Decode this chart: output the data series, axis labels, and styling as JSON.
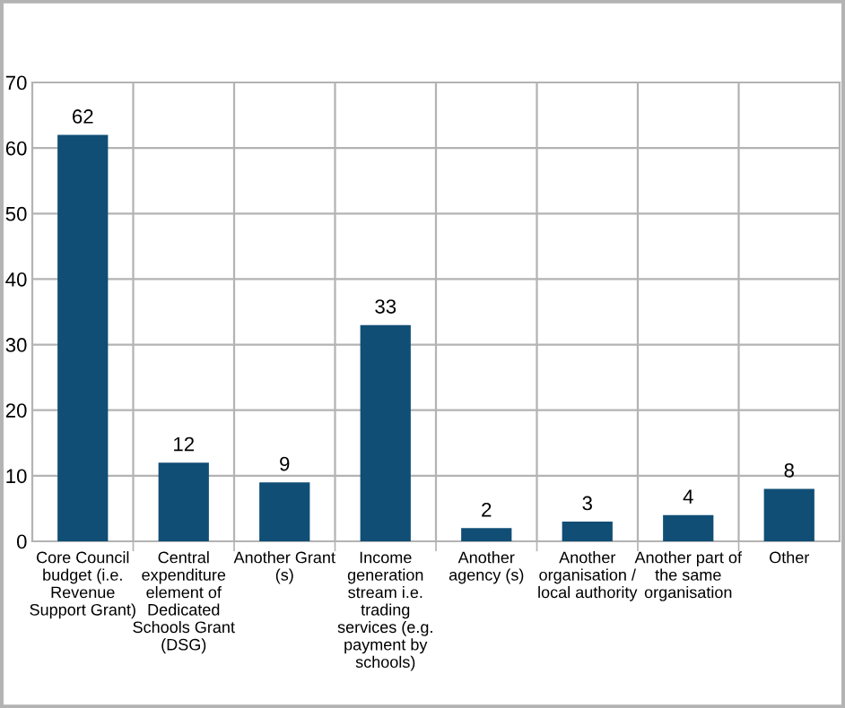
{
  "chart_data": {
    "type": "bar",
    "categories": [
      "Core Council\nbudget (i.e.\nRevenue\nSupport Grant)",
      "Central\nexpenditure\nelement of\nDedicated\nSchools Grant\n(DSG)",
      "Another Grant\n(s)",
      "Income\ngeneration\nstream i.e.\ntrading\nservices (e.g.\npayment by\nschools)",
      "Another\nagency (s)",
      "Another\norganisation /\nlocal authority",
      "Another part of\nthe same\norganisation",
      "Other"
    ],
    "values": [
      62,
      12,
      9,
      33,
      2,
      3,
      4,
      8
    ],
    "color": "#104e75",
    "ylim": [
      0,
      70
    ],
    "yticks": [
      0,
      10,
      20,
      30,
      40,
      50,
      60,
      70
    ],
    "grid": true,
    "data_labels": true
  }
}
